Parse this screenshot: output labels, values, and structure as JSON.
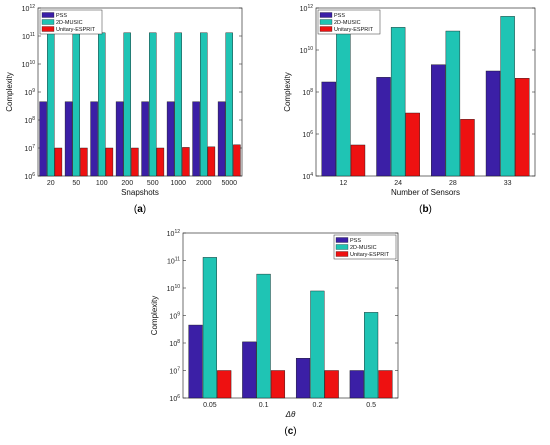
{
  "colors": {
    "PSS": "#3b1fa6",
    "2D-MUSIC": "#1fc4b4",
    "Unitary-ESPRIT": "#ee1111"
  },
  "chart_data": [
    {
      "type": "bar",
      "yscale": "log",
      "ylim": [
        1000000.0,
        1000000000000.0
      ],
      "ytick_exponents": [
        6,
        7,
        8,
        9,
        10,
        11,
        12
      ],
      "xlabel": "Snapshots",
      "ylabel": "Complexity",
      "caption": "(a)",
      "legend_position": "top-left",
      "categories": [
        "20",
        "50",
        "100",
        "200",
        "500",
        "1000",
        "2000",
        "5000"
      ],
      "series": [
        {
          "name": "PSS",
          "values": [
            450000000.0,
            450000000.0,
            450000000.0,
            450000000.0,
            450000000.0,
            450000000.0,
            450000000.0,
            450000000.0
          ]
        },
        {
          "name": "2D-MUSIC",
          "values": [
            130000000000.0,
            130000000000.0,
            130000000000.0,
            130000000000.0,
            130000000000.0,
            130000000000.0,
            130000000000.0,
            130000000000.0
          ]
        },
        {
          "name": "Unitary-ESPRIT",
          "values": [
            10000000.0,
            10000000.0,
            10000000.0,
            10000000.0,
            10000000.0,
            10500000.0,
            11000000.0,
            13000000.0
          ]
        }
      ]
    },
    {
      "type": "bar",
      "yscale": "log",
      "ylim": [
        10000.0,
        1000000000000.0
      ],
      "ytick_exponents": [
        4,
        6,
        8,
        10,
        12
      ],
      "xlabel": "Number of Sensors",
      "ylabel": "Complexity",
      "caption": "(b)",
      "legend_position": "top-left",
      "categories": [
        "12",
        "24",
        "28",
        "33"
      ],
      "series": [
        {
          "name": "PSS",
          "values": [
            300000000.0,
            500000000.0,
            2000000000.0,
            1000000000.0
          ]
        },
        {
          "name": "2D-MUSIC",
          "values": [
            60000000000.0,
            120000000000.0,
            80000000000.0,
            400000000000.0
          ]
        },
        {
          "name": "Unitary-ESPRIT",
          "values": [
            300000.0,
            10000000.0,
            5000000.0,
            450000000.0
          ]
        }
      ]
    },
    {
      "type": "bar",
      "yscale": "log",
      "ylim": [
        1000000.0,
        1000000000000.0
      ],
      "ytick_exponents": [
        6,
        7,
        8,
        9,
        10,
        11,
        12
      ],
      "xlabel": "Δθ",
      "ylabel": "Complexity",
      "caption": "(c)",
      "legend_position": "top-right",
      "categories": [
        "0.05",
        "0.1",
        "0.2",
        "0.5"
      ],
      "series": [
        {
          "name": "PSS",
          "values": [
            450000000.0,
            110000000.0,
            28000000.0,
            10000000.0
          ]
        },
        {
          "name": "2D-MUSIC",
          "values": [
            130000000000.0,
            32000000000.0,
            7800000000.0,
            1300000000.0
          ]
        },
        {
          "name": "Unitary-ESPRIT",
          "values": [
            10000000.0,
            10000000.0,
            10000000.0,
            10000000.0
          ]
        }
      ]
    }
  ]
}
